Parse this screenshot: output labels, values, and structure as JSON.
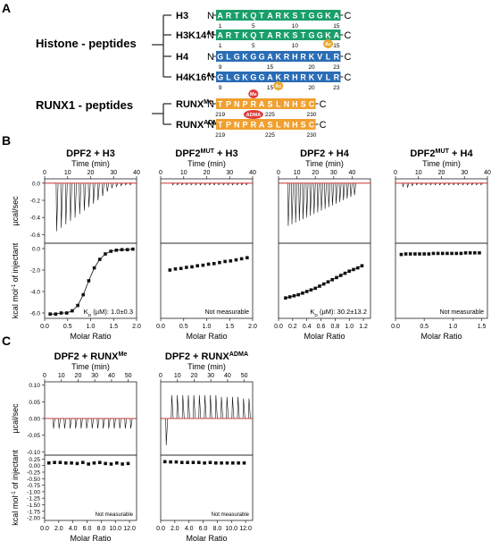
{
  "panel_labels": {
    "a": "A",
    "b": "B",
    "c": "C"
  },
  "panel_a": {
    "group1_label": "Histone - peptides",
    "group2_label": "RUNX1 - peptides",
    "colors": {
      "histone_h3": "#1a9e6a",
      "histone_h4": "#2a6db5",
      "runx": "#f0a030",
      "acetyl": "#e8a832",
      "methyl": "#e23a3a"
    },
    "n_term": "N",
    "c_term": "C",
    "peptides": [
      {
        "label": "H3",
        "sup": "",
        "residues": "ARTKQTARKSTGGKA",
        "color": "#1a9e6a",
        "ticks": [
          {
            "n": "1",
            "pos": 1
          },
          {
            "n": "5",
            "pos": 5
          },
          {
            "n": "10",
            "pos": 10
          },
          {
            "n": "15",
            "pos": 15
          }
        ],
        "mod": null
      },
      {
        "label": "H3K14",
        "sup": "Ac",
        "residues": "ARTKQTARKSTGGKA",
        "color": "#1a9e6a",
        "ticks": [
          {
            "n": "1",
            "pos": 1
          },
          {
            "n": "5",
            "pos": 5
          },
          {
            "n": "10",
            "pos": 10
          },
          {
            "n": "15",
            "pos": 15
          }
        ],
        "mod": {
          "text": "Ac",
          "pos": 14,
          "color": "#e8a832"
        }
      },
      {
        "label": "H4",
        "sup": "",
        "residues": "GLGKGGAKRHRKVLR",
        "color": "#2a6db5",
        "ticks": [
          {
            "n": "9",
            "pos": 1
          },
          {
            "n": "15",
            "pos": 7
          },
          {
            "n": "20",
            "pos": 12
          },
          {
            "n": "23",
            "pos": 15
          }
        ],
        "mod": null
      },
      {
        "label": "H4K16",
        "sup": "Ac",
        "residues": "GLGKGGAKRHRKVLR",
        "color": "#2a6db5",
        "ticks": [
          {
            "n": "9",
            "pos": 1
          },
          {
            "n": "15",
            "pos": 7
          },
          {
            "n": "20",
            "pos": 12
          },
          {
            "n": "23",
            "pos": 15
          }
        ],
        "mod": {
          "text": "Ac",
          "pos": 8,
          "color": "#e8a832"
        }
      },
      {
        "label": "RUNX",
        "sup": "Me",
        "residues": "TPNPRASLNHSC",
        "color": "#f0a030",
        "ticks": [
          {
            "n": "219",
            "pos": 1
          },
          {
            "n": "225",
            "pos": 7
          },
          {
            "n": "230",
            "pos": 12
          }
        ],
        "mod": {
          "text": "Me",
          "pos": 5,
          "color": "#e23a3a"
        }
      },
      {
        "label": "RUNX",
        "sup": "ADMA",
        "residues": "TPNPRASLNHSC",
        "color": "#f0a030",
        "ticks": [
          {
            "n": "219",
            "pos": 1
          },
          {
            "n": "225",
            "pos": 7
          },
          {
            "n": "230",
            "pos": 12
          }
        ],
        "mod": {
          "text": "ADMA",
          "pos": 5,
          "color": "#e23a3a"
        }
      }
    ]
  },
  "itc_labels": {
    "time_axis": "Time (min)",
    "ucal_axis": "µcal/sec",
    "kcal_axis_main": "kcal mol",
    "kcal_axis_sup": "-1",
    "kcal_axis_rest": " of injectant",
    "molar_ratio": "Molar Ratio",
    "not_measurable": "Not measurable"
  },
  "chart_data": [
    {
      "type": "scatter",
      "panel": "B1",
      "title": "DPF2 + H3",
      "title_sup": "",
      "raw": {
        "xlim": [
          0,
          40
        ],
        "xticks": [
          "0",
          "10",
          "20",
          "30",
          "40"
        ],
        "ylim": [
          -0.7,
          0.05
        ],
        "yticks": [
          "0.0",
          "-0.2",
          "-0.4",
          "-0.6"
        ],
        "injection_start": 5,
        "injection_interval": 2,
        "peaks": [
          -0.56,
          -0.52,
          -0.48,
          -0.44,
          -0.4,
          -0.36,
          -0.32,
          -0.28,
          -0.24,
          -0.2,
          -0.15,
          -0.1,
          -0.06,
          -0.04,
          -0.03,
          -0.02,
          -0.02
        ]
      },
      "binding": {
        "xlim": [
          0,
          2.0
        ],
        "xticks": [
          "0.0",
          "0.5",
          "1.0",
          "1.5",
          "2.0"
        ],
        "ylim": [
          -6.5,
          0.5
        ],
        "yticks": [
          "0.0",
          "-2.0",
          "-4.0",
          "-6.0"
        ],
        "x": [
          0.12,
          0.24,
          0.36,
          0.48,
          0.6,
          0.72,
          0.84,
          0.96,
          1.08,
          1.2,
          1.32,
          1.44,
          1.56,
          1.68,
          1.8,
          1.92
        ],
        "y": [
          -6.1,
          -6.1,
          -6.0,
          -6.0,
          -5.8,
          -5.3,
          -4.3,
          -3.0,
          -1.8,
          -1.0,
          -0.5,
          -0.25,
          -0.15,
          -0.1,
          -0.1,
          -0.05
        ],
        "fit": true,
        "kd_label": "K",
        "kd_sub": "D",
        "kd_value": " (µM): 1.0±0.3"
      }
    },
    {
      "type": "scatter",
      "panel": "B2",
      "title": "DPF2",
      "title_sup": "MUT",
      "title_rest": " + H3",
      "raw": {
        "xlim": [
          0,
          40
        ],
        "xticks": [
          "0",
          "10",
          "20",
          "30",
          "40"
        ],
        "ylim": [
          -0.7,
          0.05
        ],
        "yticks": [],
        "injection_start": 5,
        "injection_interval": 2,
        "peaks": [
          -0.02,
          -0.02,
          -0.02,
          -0.02,
          -0.02,
          -0.02,
          -0.02,
          -0.02,
          -0.02,
          -0.02,
          -0.02,
          -0.02,
          -0.02,
          -0.02,
          -0.02,
          -0.02,
          -0.02
        ]
      },
      "binding": {
        "xlim": [
          0,
          2.0
        ],
        "xticks": [],
        "ylim": [
          -6.5,
          0.5
        ],
        "yticks": [],
        "x": [
          0.2,
          0.32,
          0.44,
          0.56,
          0.68,
          0.8,
          0.92,
          1.04,
          1.16,
          1.28,
          1.4,
          1.52,
          1.64,
          1.76,
          1.88
        ],
        "y": [
          -2.0,
          -1.9,
          -1.85,
          -1.75,
          -1.7,
          -1.6,
          -1.55,
          -1.45,
          -1.4,
          -1.3,
          -1.2,
          -1.15,
          -1.05,
          -0.95,
          -0.85
        ],
        "fit": false,
        "note": "Not measurable"
      }
    },
    {
      "type": "scatter",
      "panel": "B3",
      "title": "DPF2 + H4",
      "title_sup": "",
      "raw": {
        "xlim": [
          0,
          50
        ],
        "xticks": [
          "0",
          "10",
          "20",
          "30",
          "40"
        ],
        "ylim": [
          -0.7,
          0.05
        ],
        "yticks": [],
        "injection_start": 5,
        "injection_interval": 2,
        "peaks": [
          -0.5,
          -0.48,
          -0.46,
          -0.44,
          -0.42,
          -0.4,
          -0.38,
          -0.36,
          -0.34,
          -0.32,
          -0.3,
          -0.28,
          -0.26,
          -0.24,
          -0.22,
          -0.2,
          -0.18,
          -0.16,
          -0.14
        ]
      },
      "binding": {
        "xlim": [
          0,
          1.3
        ],
        "xticks": [],
        "ylim": [
          -6.5,
          0.5
        ],
        "yticks": [],
        "x": [
          0.1,
          0.16,
          0.22,
          0.28,
          0.34,
          0.4,
          0.46,
          0.52,
          0.58,
          0.64,
          0.7,
          0.76,
          0.82,
          0.88,
          0.94,
          1.0,
          1.06,
          1.12,
          1.18
        ],
        "y": [
          -4.6,
          -4.5,
          -4.4,
          -4.3,
          -4.15,
          -4.0,
          -3.85,
          -3.7,
          -3.5,
          -3.3,
          -3.1,
          -2.9,
          -2.7,
          -2.5,
          -2.3,
          -2.1,
          -1.95,
          -1.8,
          -1.6
        ],
        "fit": true,
        "kd_label": "K",
        "kd_sub": "D",
        "kd_value": " (µM): 30.2±13.2"
      }
    },
    {
      "type": "scatter",
      "panel": "B4",
      "title": "DPF2",
      "title_sup": "MUT",
      "title_rest": " + H4",
      "raw": {
        "xlim": [
          0,
          40
        ],
        "xticks": [
          "0",
          "10",
          "20",
          "30",
          "40"
        ],
        "ylim": [
          -0.7,
          0.05
        ],
        "yticks": [],
        "injection_start": 3,
        "injection_interval": 2,
        "peaks": [
          -0.04,
          -0.05,
          -0.03,
          -0.02,
          -0.02,
          -0.02,
          -0.02,
          -0.02,
          -0.02,
          -0.02,
          -0.02,
          -0.02,
          -0.02,
          -0.02,
          -0.02,
          -0.02,
          -0.02,
          -0.02
        ]
      },
      "binding": {
        "xlim": [
          0,
          1.6
        ],
        "xticks": [],
        "ylim": [
          -6.5,
          0.5
        ],
        "yticks": [],
        "x": [
          0.1,
          0.18,
          0.26,
          0.34,
          0.42,
          0.5,
          0.58,
          0.66,
          0.74,
          0.82,
          0.9,
          0.98,
          1.06,
          1.14,
          1.22,
          1.3,
          1.38,
          1.46
        ],
        "y": [
          -0.55,
          -0.5,
          -0.5,
          -0.5,
          -0.5,
          -0.5,
          -0.5,
          -0.45,
          -0.45,
          -0.45,
          -0.45,
          -0.45,
          -0.45,
          -0.45,
          -0.4,
          -0.4,
          -0.4,
          -0.4
        ],
        "fit": false,
        "note": "Not measurable"
      }
    },
    {
      "type": "scatter",
      "panel": "C1",
      "title": "DPF2 + RUNX",
      "title_sup": "Me",
      "raw": {
        "xlim": [
          0,
          55
        ],
        "xticks": [
          "0",
          "10",
          "20",
          "30",
          "40",
          "50"
        ],
        "ylim": [
          -0.11,
          0.11
        ],
        "yticks": [
          "0.10",
          "0.05",
          "0.00",
          "-0.05",
          "-0.10"
        ],
        "injection_start": 5,
        "injection_interval": 3.3,
        "peaks": [
          -0.03,
          -0.03,
          -0.03,
          -0.03,
          -0.03,
          -0.03,
          -0.03,
          -0.03,
          -0.03,
          -0.03,
          -0.03,
          -0.03,
          -0.03,
          -0.03,
          -0.03
        ]
      },
      "binding": {
        "xlim": [
          0,
          13
        ],
        "xticks": [
          "0.0",
          "2.0",
          "4.0",
          "6.0",
          "8.0",
          "10.0",
          "12.0"
        ],
        "ylim": [
          -2.1,
          0.4
        ],
        "yticks": [
          "0.25",
          "0.00",
          "-0.25",
          "-0.50",
          "-0.75",
          "-1.00",
          "-1.25",
          "-1.50",
          "-1.75",
          "-2.00"
        ],
        "x": [
          0.6,
          1.4,
          2.2,
          3.0,
          3.8,
          4.6,
          5.4,
          6.2,
          7.0,
          7.8,
          8.6,
          9.4,
          10.2,
          11.0,
          11.8
        ],
        "y": [
          0.1,
          0.12,
          0.12,
          0.1,
          0.1,
          0.08,
          0.12,
          0.06,
          0.1,
          0.12,
          0.08,
          0.06,
          0.1,
          0.06,
          0.08
        ],
        "fit": false,
        "note": "Not measurable"
      }
    },
    {
      "type": "scatter",
      "panel": "C2",
      "title": "DPF2 + RUNX",
      "title_sup": "ADMA",
      "raw": {
        "xlim": [
          0,
          55
        ],
        "xticks": [
          "0",
          "10",
          "20",
          "30",
          "40",
          "50"
        ],
        "ylim": [
          -0.11,
          0.11
        ],
        "yticks": [],
        "injection_start": 3,
        "injection_interval": 3.3,
        "peaks": [
          -0.08,
          0.07,
          0.07,
          0.07,
          0.07,
          0.07,
          0.07,
          0.07,
          0.07,
          0.07,
          0.065,
          0.065,
          0.065,
          0.065,
          0.06,
          0.06
        ]
      },
      "binding": {
        "xlim": [
          0,
          13
        ],
        "xticks": [
          "0.0",
          "2.0",
          "4.0",
          "6.0",
          "8.0",
          "10.0",
          "12.0"
        ],
        "ylim": [
          -2.1,
          0.4
        ],
        "yticks": [],
        "x": [
          0.6,
          1.4,
          2.2,
          3.0,
          3.8,
          4.6,
          5.4,
          6.2,
          7.0,
          7.8,
          8.6,
          9.4,
          10.2,
          11.0,
          11.8
        ],
        "y": [
          0.15,
          0.14,
          0.14,
          0.12,
          0.12,
          0.12,
          0.12,
          0.1,
          0.12,
          0.1,
          0.1,
          0.1,
          0.1,
          0.1,
          0.1
        ],
        "fit": false,
        "note": "Not measurable"
      }
    }
  ]
}
